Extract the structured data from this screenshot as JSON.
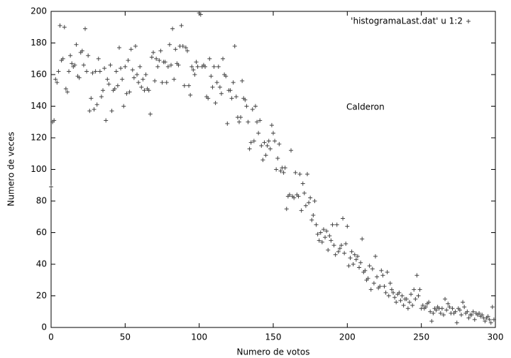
{
  "chart_data": {
    "type": "scatter",
    "xlabel": "Numero de votos",
    "ylabel": "Numero de veces",
    "annotation": "Calderon",
    "xlim": [
      0,
      300
    ],
    "xticks": [
      0,
      50,
      100,
      150,
      200,
      250,
      300
    ],
    "ylim": [
      0,
      200
    ],
    "yticks": [
      0,
      20,
      40,
      60,
      80,
      100,
      120,
      140,
      160,
      180,
      200
    ],
    "legend": "top-right",
    "series": [
      {
        "name": "'histogramaLast.dat' u 1:2",
        "color": "#444444",
        "x": [
          0,
          1,
          2,
          3,
          4,
          5,
          6,
          7,
          8,
          9,
          10,
          11,
          12,
          13,
          14,
          15,
          16,
          17,
          18,
          19,
          20,
          21,
          22,
          23,
          24,
          25,
          26,
          27,
          28,
          29,
          30,
          31,
          32,
          33,
          34,
          35,
          36,
          37,
          38,
          39,
          40,
          41,
          42,
          43,
          44,
          45,
          46,
          47,
          48,
          49,
          50,
          51,
          52,
          53,
          54,
          55,
          56,
          57,
          58,
          59,
          60,
          61,
          62,
          63,
          64,
          65,
          66,
          67,
          68,
          69,
          70,
          71,
          72,
          73,
          74,
          75,
          76,
          77,
          78,
          79,
          80,
          81,
          82,
          83,
          84,
          85,
          86,
          87,
          88,
          89,
          90,
          91,
          92,
          93,
          94,
          95,
          96,
          97,
          98,
          99,
          100,
          101,
          102,
          103,
          104,
          105,
          106,
          107,
          108,
          109,
          110,
          111,
          112,
          113,
          114,
          115,
          116,
          117,
          118,
          119,
          120,
          121,
          122,
          123,
          124,
          125,
          126,
          127,
          128,
          129,
          130,
          131,
          132,
          133,
          134,
          135,
          136,
          137,
          138,
          139,
          140,
          141,
          142,
          143,
          144,
          145,
          146,
          147,
          148,
          149,
          150,
          151,
          152,
          153,
          154,
          155,
          156,
          157,
          158,
          159,
          160,
          161,
          162,
          163,
          164,
          165,
          166,
          167,
          168,
          169,
          170,
          171,
          172,
          173,
          174,
          175,
          176,
          177,
          178,
          179,
          180,
          181,
          182,
          183,
          184,
          185,
          186,
          187,
          188,
          189,
          190,
          191,
          192,
          193,
          194,
          195,
          196,
          197,
          198,
          199,
          200,
          201,
          202,
          203,
          204,
          205,
          206,
          207,
          208,
          209,
          210,
          211,
          212,
          213,
          214,
          215,
          216,
          217,
          218,
          219,
          220,
          221,
          222,
          223,
          224,
          225,
          226,
          227,
          228,
          229,
          230,
          231,
          232,
          233,
          234,
          235,
          236,
          237,
          238,
          239,
          240,
          241,
          242,
          243,
          244,
          245,
          246,
          247,
          248,
          249,
          250,
          251,
          252,
          253,
          254,
          255,
          256,
          257,
          258,
          259,
          260,
          261,
          262,
          263,
          264,
          265,
          266,
          267,
          268,
          269,
          270,
          271,
          272,
          273,
          274,
          275,
          276,
          277,
          278,
          279,
          280,
          281,
          282,
          283,
          284,
          285,
          286,
          287,
          288,
          289,
          290,
          291,
          292,
          293,
          294,
          295,
          296,
          297,
          298,
          299
        ],
        "values": [
          89,
          130,
          131,
          157,
          155,
          162,
          191,
          169,
          170,
          190,
          151,
          149,
          162,
          172,
          167,
          165,
          166,
          179,
          159,
          158,
          174,
          175,
          166,
          189,
          162,
          172,
          137,
          145,
          161,
          138,
          162,
          141,
          170,
          162,
          146,
          150,
          164,
          131,
          157,
          154,
          166,
          137,
          150,
          151,
          162,
          153,
          177,
          164,
          157,
          140,
          165,
          148,
          169,
          149,
          176,
          163,
          158,
          178,
          160,
          155,
          165,
          152,
          157,
          150,
          160,
          151,
          150,
          135,
          171,
          174,
          156,
          170,
          165,
          169,
          175,
          155,
          168,
          168,
          155,
          165,
          179,
          166,
          189,
          157,
          176,
          167,
          166,
          178,
          191,
          178,
          153,
          177,
          175,
          153,
          147,
          165,
          163,
          160,
          168,
          165,
          199,
          198,
          165,
          166,
          165,
          146,
          145,
          170,
          159,
          152,
          165,
          142,
          155,
          165,
          152,
          148,
          170,
          160,
          159,
          129,
          150,
          150,
          145,
          155,
          178,
          146,
          133,
          130,
          133,
          156,
          145,
          144,
          140,
          130,
          113,
          117,
          138,
          118,
          140,
          130,
          123,
          131,
          115,
          106,
          117,
          109,
          115,
          118,
          113,
          128,
          123,
          118,
          100,
          107,
          116,
          99,
          101,
          98,
          101,
          75,
          83,
          84,
          112,
          83,
          82,
          98,
          84,
          83,
          97,
          74,
          91,
          85,
          77,
          97,
          79,
          82,
          68,
          71,
          80,
          65,
          59,
          55,
          60,
          54,
          62,
          57,
          61,
          49,
          58,
          55,
          65,
          52,
          46,
          65,
          48,
          50,
          52,
          69,
          47,
          53,
          64,
          39,
          44,
          48,
          40,
          46,
          43,
          45,
          38,
          41,
          56,
          35,
          36,
          30,
          31,
          39,
          24,
          37,
          28,
          45,
          32,
          25,
          26,
          36,
          33,
          26,
          22,
          35,
          20,
          28,
          24,
          22,
          19,
          16,
          21,
          22,
          17,
          20,
          14,
          18,
          18,
          12,
          16,
          21,
          14,
          24,
          18,
          33,
          20,
          24,
          12,
          14,
          12,
          13,
          15,
          16,
          10,
          4,
          9,
          12,
          11,
          13,
          12,
          9,
          12,
          8,
          18,
          11,
          15,
          13,
          9,
          12,
          9,
          10,
          3,
          12,
          11,
          8,
          16,
          13,
          9,
          10,
          6,
          8,
          8,
          10,
          5,
          9,
          8,
          9,
          7,
          8,
          6,
          4,
          6,
          7,
          5,
          3,
          13,
          5
        ]
      }
    ]
  }
}
